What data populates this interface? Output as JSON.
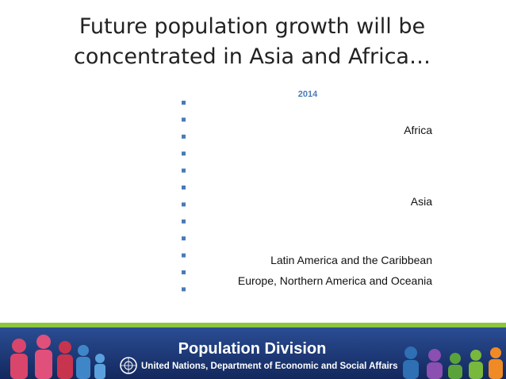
{
  "slide": {
    "title_lines": [
      "Future population growth will be",
      "concentrated in Asia and Africa…"
    ],
    "chart": {
      "year": "2014",
      "labels": [
        "Africa",
        "Asia",
        "Latin America and the Caribbean",
        "Europe, Northern America and Oceania"
      ]
    },
    "footer": {
      "title": "Population Division",
      "subtitle": "United Nations, Department of Economic and Social Affairs"
    }
  }
}
